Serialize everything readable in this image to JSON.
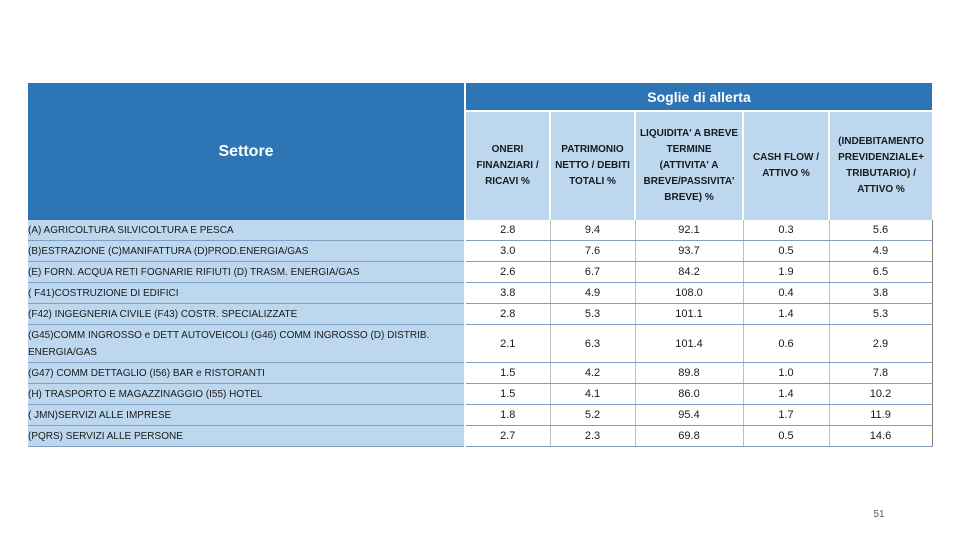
{
  "table": {
    "sector_header": "Settore",
    "group_header": "Soglie di allerta",
    "columns": [
      [
        "ONERI",
        "FINANZIARI /",
        "RICAVI %"
      ],
      [
        "PATRIMONIO",
        "NETTO / DEBITI",
        "TOTALI %"
      ],
      [
        "LIQUIDITA' A BREVE",
        "TERMINE",
        "(ATTIVITA'  A",
        "BREVE/PASSIVITA'",
        "BREVE) %"
      ],
      [
        "CASH FLOW /",
        "ATTIVO %"
      ],
      [
        "(INDEBITAMENTO",
        "PREVIDENZIALE+",
        "TRIBUTARIO) /",
        "ATTIVO %"
      ]
    ],
    "rows": [
      {
        "sector": "(A) AGRICOLTURA SILVICOLTURA E PESCA",
        "values": [
          "2.8",
          "9.4",
          "92.1",
          "0.3",
          "5.6"
        ]
      },
      {
        "sector": "(B)ESTRAZIONE (C)MANIFATTURA (D)PROD.ENERGIA/GAS",
        "values": [
          "3.0",
          "7.6",
          "93.7",
          "0.5",
          "4.9"
        ]
      },
      {
        "sector": "(E) FORN. ACQUA RETI FOGNARIE RIFIUTI (D) TRASM. ENERGIA/GAS",
        "values": [
          "2.6",
          "6.7",
          "84.2",
          "1.9",
          "6.5"
        ]
      },
      {
        "sector": "( F41)COSTRUZIONE DI EDIFICI",
        "values": [
          "3.8",
          "4.9",
          "108.0",
          "0.4",
          "3.8"
        ]
      },
      {
        "sector": "(F42) INGEGNERIA CIVILE  (F43) COSTR. SPECIALIZZATE",
        "values": [
          "2.8",
          "5.3",
          "101.1",
          "1.4",
          "5.3"
        ]
      },
      {
        "sector": "(G45)COMM INGROSSO e DETT AUTOVEICOLI (G46) COMM INGROSSO (D) DISTRIB. ENERGIA/GAS",
        "values": [
          "2.1",
          "6.3",
          "101.4",
          "0.6",
          "2.9"
        ]
      },
      {
        "sector": "(G47) COMM DETTAGLIO (I56) BAR e RISTORANTI",
        "values": [
          "1.5",
          "4.2",
          "89.8",
          "1.0",
          "7.8"
        ]
      },
      {
        "sector": "(H) TRASPORTO E MAGAZZINAGGIO (I55) HOTEL",
        "values": [
          "1.5",
          "4.1",
          "86.0",
          "1.4",
          "10.2"
        ]
      },
      {
        "sector": "( JMN)SERVIZI ALLE IMPRESE",
        "values": [
          "1.8",
          "5.2",
          "95.4",
          "1.7",
          "11.9"
        ]
      },
      {
        "sector": "(PQRS) SERVIZI ALLE PERSONE",
        "values": [
          "2.7",
          "2.3",
          "69.8",
          "0.5",
          "14.6"
        ]
      }
    ]
  },
  "page_number": "51",
  "colors": {
    "header_blue": "#2e75b6",
    "light_blue": "#bdd7ee"
  }
}
